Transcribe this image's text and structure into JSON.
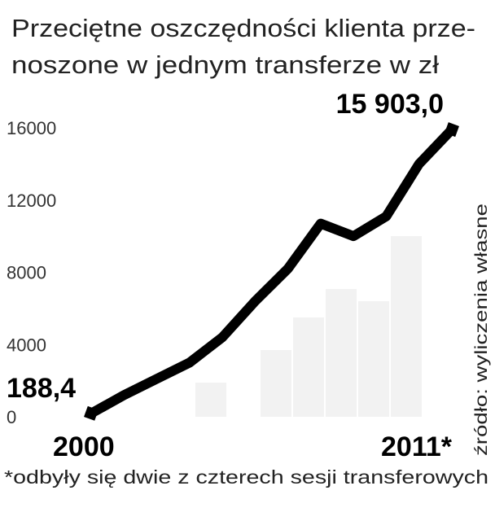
{
  "chart_data": {
    "type": "line",
    "title": [
      "Przeciętne oszczędności klienta prze-",
      "noszone w jednym transferze w zł"
    ],
    "source": "źródło: wyliczenia własne",
    "footnote": "*odbyły się dwie z czterech sesji transferowych",
    "categories": [
      "2000",
      null,
      null,
      null,
      null,
      null,
      null,
      null,
      null,
      null,
      null,
      "2011*"
    ],
    "values": [
      188.4,
      1200,
      2100,
      3000,
      4400,
      6400,
      8200,
      10700,
      10000,
      11100,
      14000,
      15903.0
    ],
    "value_labels": [
      "188,4",
      null,
      null,
      null,
      null,
      null,
      null,
      null,
      null,
      null,
      null,
      "15 903,0"
    ],
    "color": "#000000",
    "ylim": [
      0,
      16000
    ],
    "yticks": [
      0,
      4000,
      8000,
      12000,
      16000
    ]
  }
}
